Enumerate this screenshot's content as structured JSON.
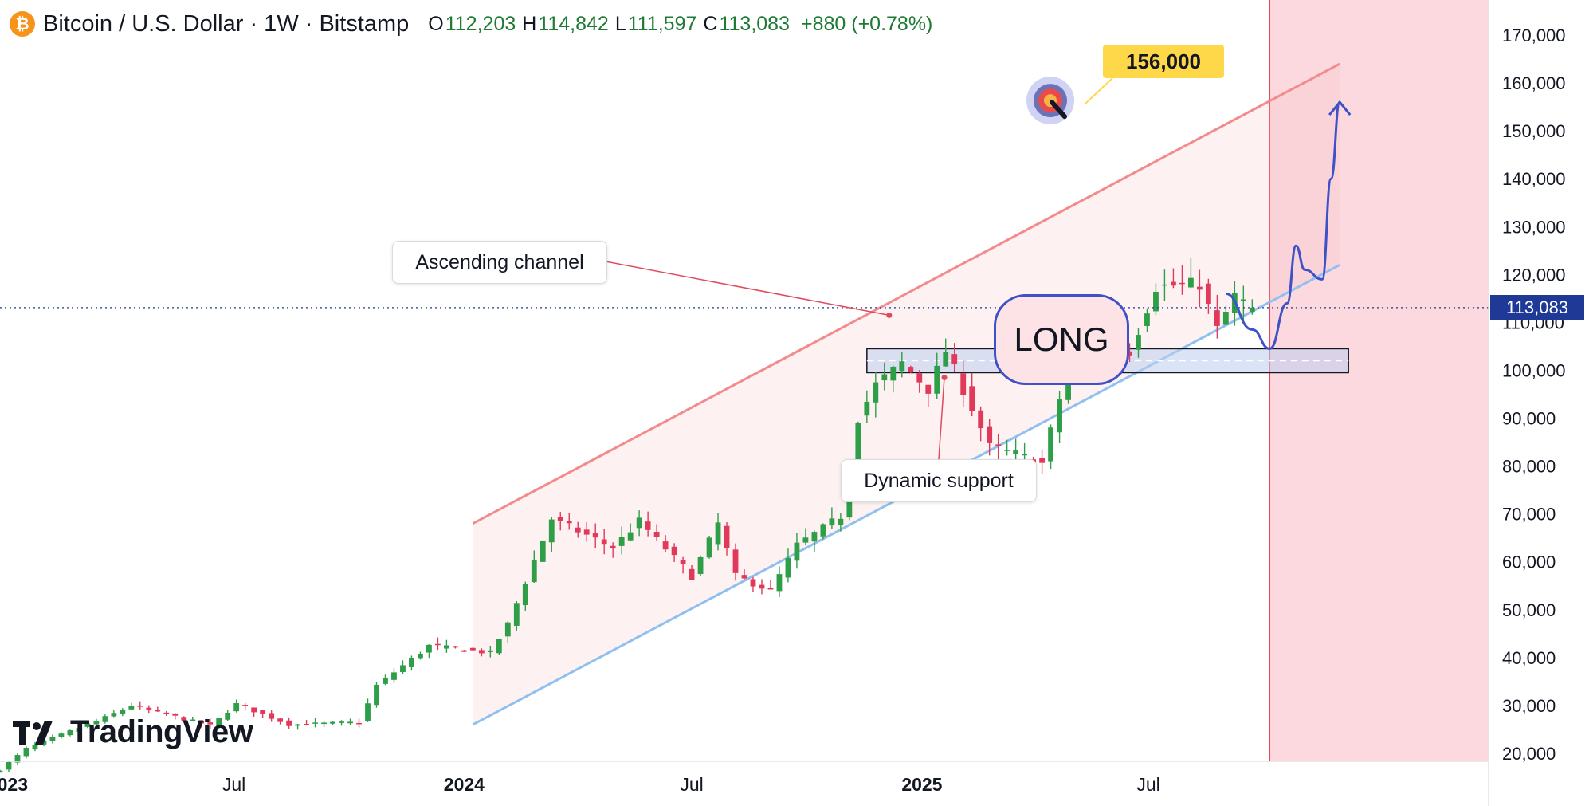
{
  "header": {
    "symbol_title": "Bitcoin / U.S. Dollar · 1W · Bitstamp",
    "logo_glyph": "₿",
    "ohlc": [
      {
        "key": "O",
        "value": "112,203"
      },
      {
        "key": "H",
        "value": "114,842"
      },
      {
        "key": "L",
        "value": "111,597"
      },
      {
        "key": "C",
        "value": "113,083"
      }
    ],
    "change": "+880 (+0.78%)"
  },
  "branding": {
    "logo_text": "TradingView"
  },
  "annotations": {
    "ascending_channel": "Ascending channel",
    "dynamic_support": "Dynamic support",
    "long_label": "LONG",
    "target_label": "156,000",
    "current_price_tag": "113,083"
  },
  "colors": {
    "bull": "#2e9e48",
    "bear": "#e0395a",
    "channel_upper": "#f28c8c",
    "channel_lower": "#90c0f0",
    "future_zone": "#fcd9de",
    "projection": "#3f51c7",
    "price_tag": "#1e3a96",
    "target_badge": "#ffd84a"
  },
  "chart_data": {
    "type": "candlestick",
    "interval": "1W",
    "y_axis": {
      "min": 20000,
      "max": 170000,
      "position": "right",
      "ticks": [
        20000,
        30000,
        40000,
        50000,
        60000,
        70000,
        80000,
        90000,
        100000,
        110000,
        120000,
        130000,
        140000,
        150000,
        160000,
        170000
      ],
      "tick_labels": [
        "20,000",
        "30,000",
        "40,000",
        "50,000",
        "60,000",
        "70,000",
        "80,000",
        "90,000",
        "100,000",
        "110,000",
        "120,000",
        "130,000",
        "140,000",
        "150,000",
        "160,000",
        "170,000"
      ]
    },
    "x_axis": {
      "range": [
        "2022-12-26",
        "2026-03-30"
      ],
      "ticks": [
        {
          "date": "2023-01-01",
          "label": "2023",
          "bold": true
        },
        {
          "date": "2023-07-01",
          "label": "Jul",
          "bold": false
        },
        {
          "date": "2024-01-01",
          "label": "2024",
          "bold": true
        },
        {
          "date": "2024-07-01",
          "label": "Jul",
          "bold": false
        },
        {
          "date": "2025-01-01",
          "label": "2025",
          "bold": true
        },
        {
          "date": "2025-07-01",
          "label": "Jul",
          "bold": false
        }
      ]
    },
    "close_anchors": [
      [
        "2022-12-26",
        16600
      ],
      [
        "2023-01-16",
        21000
      ],
      [
        "2023-03-20",
        27500
      ],
      [
        "2023-04-10",
        30000
      ],
      [
        "2023-06-12",
        25800
      ],
      [
        "2023-07-03",
        30300
      ],
      [
        "2023-08-14",
        26000
      ],
      [
        "2023-10-09",
        26500
      ],
      [
        "2023-10-23",
        34200
      ],
      [
        "2023-12-04",
        42500
      ],
      [
        "2024-01-22",
        41000
      ],
      [
        "2024-02-05",
        47000
      ],
      [
        "2024-03-11",
        69000
      ],
      [
        "2024-04-29",
        63000
      ],
      [
        "2024-05-20",
        68500
      ],
      [
        "2024-07-01",
        57000
      ],
      [
        "2024-07-22",
        68000
      ],
      [
        "2024-08-05",
        57000
      ],
      [
        "2024-09-02",
        54000
      ],
      [
        "2024-09-23",
        63500
      ],
      [
        "2024-10-28",
        69500
      ],
      [
        "2024-11-11",
        90000
      ],
      [
        "2024-11-25",
        97000
      ],
      [
        "2024-12-16",
        101500
      ],
      [
        "2025-01-06",
        96000
      ],
      [
        "2025-01-20",
        104000
      ],
      [
        "2025-02-24",
        84000
      ],
      [
        "2025-03-17",
        82500
      ],
      [
        "2025-04-07",
        80500
      ],
      [
        "2025-04-21",
        94000
      ],
      [
        "2025-05-19",
        107500
      ],
      [
        "2025-06-16",
        104000
      ],
      [
        "2025-07-07",
        117500
      ],
      [
        "2025-08-11",
        118000
      ],
      [
        "2025-08-25",
        108500
      ],
      [
        "2025-09-08",
        115500
      ],
      [
        "2025-09-22",
        113083
      ]
    ],
    "last_candle": {
      "date": "2025-09-22",
      "open": 112203,
      "high": 114842,
      "low": 111597,
      "close": 113083
    },
    "channel": {
      "upper": [
        [
          "2024-01-08",
          68000
        ],
        [
          "2025-12-01",
          164000
        ]
      ],
      "lower": [
        [
          "2024-01-08",
          26000
        ],
        [
          "2025-12-01",
          122000
        ]
      ]
    },
    "support_zone": {
      "from": "2024-11-18",
      "to": "2025-12-08",
      "low": 99500,
      "high": 104500
    },
    "current_price_line": 113083,
    "future_zone_start": "2025-10-06",
    "projection_path": [
      [
        "2025-09-01",
        116000
      ],
      [
        "2025-09-22",
        108500
      ],
      [
        "2025-10-06",
        104500
      ],
      [
        "2025-10-20",
        114000
      ],
      [
        "2025-10-27",
        126000
      ],
      [
        "2025-11-03",
        121000
      ],
      [
        "2025-11-17",
        119000
      ],
      [
        "2025-11-24",
        140000
      ],
      [
        "2025-12-01",
        156000
      ]
    ],
    "target": 156000
  }
}
